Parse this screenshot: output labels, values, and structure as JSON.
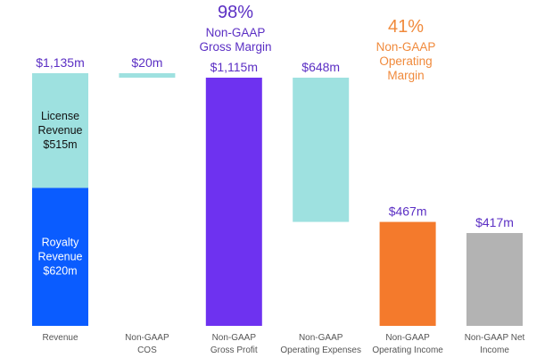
{
  "chart_data": {
    "type": "waterfall",
    "title": "",
    "ylim": [
      0,
      1135
    ],
    "grid": false,
    "categories": [
      "Revenue",
      "Non-GAAP\nCOS",
      "Non-GAAP\nGross Profit",
      "Non-GAAP\nOperating Expenses",
      "Non-GAAP\nOperating Income",
      "Non-GAAP Net\nIncome"
    ],
    "bars": [
      {
        "category": "Revenue",
        "label": "$1,135m",
        "segments": [
          {
            "name": "Royalty Revenue",
            "label": "Royalty\nRevenue\n$620m",
            "start": 0,
            "end": 620,
            "color": "#0a5cff",
            "text_color": "#ffffff"
          },
          {
            "name": "License Revenue",
            "label": "License\nRevenue\n$515m",
            "start": 620,
            "end": 1135,
            "color": "#9ee1e0",
            "text_color": "#111111"
          }
        ]
      },
      {
        "category": "Non-GAAP COS",
        "label": "$20m",
        "segments": [
          {
            "start": 1115,
            "end": 1135,
            "color": "#9ee1e0"
          }
        ]
      },
      {
        "category": "Non-GAAP Gross Profit",
        "label": "$1,115m",
        "segments": [
          {
            "start": 0,
            "end": 1115,
            "color": "#6e32f0"
          }
        ]
      },
      {
        "category": "Non-GAAP Operating Expenses",
        "label": "$648m",
        "segments": [
          {
            "start": 467,
            "end": 1115,
            "color": "#9ee1e0"
          }
        ]
      },
      {
        "category": "Non-GAAP Operating Income",
        "label": "$467m",
        "segments": [
          {
            "start": 0,
            "end": 467,
            "color": "#f47a2c"
          }
        ]
      },
      {
        "category": "Non-GAAP Net Income",
        "label": "$417m",
        "segments": [
          {
            "start": 0,
            "end": 417,
            "color": "#b3b3b3"
          }
        ]
      }
    ],
    "annotations": [
      {
        "value": "98%",
        "text": "Non-GAAP\nGross Margin",
        "color": "#5b2fc4",
        "category": "Non-GAAP Gross Profit"
      },
      {
        "value": "41%",
        "text": "Non-GAAP\nOperating\nMargin",
        "color": "#f08a3c",
        "category": "Non-GAAP Operating Income"
      }
    ],
    "value_label_color": "#5b2fc4",
    "category_label_color": "#555555"
  }
}
